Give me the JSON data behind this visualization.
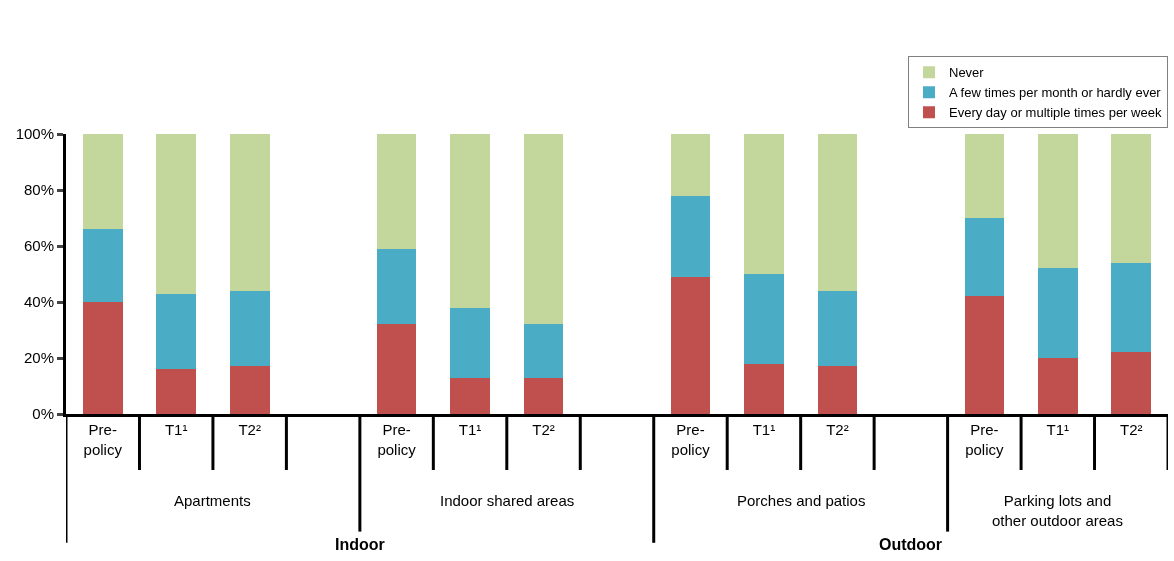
{
  "chart_data": {
    "type": "bar",
    "stacked": true,
    "categories": [
      "Pre-\npolicy",
      "T1¹",
      "T2²",
      null,
      "Pre-\npolicy",
      "T1¹",
      "T2²",
      null,
      "Pre-\npolicy",
      "T1¹",
      "T2²",
      null,
      "Pre-\npolicy",
      "T1¹",
      "T2²"
    ],
    "series": [
      {
        "name": "Every day or multiple times per week",
        "color": "#c0504d",
        "values": [
          40,
          16,
          17,
          null,
          32,
          13,
          13,
          null,
          49,
          18,
          17,
          null,
          42,
          20,
          22
        ]
      },
      {
        "name": "A few times per month or hardly ever",
        "color": "#4bacc6",
        "values": [
          26,
          27,
          27,
          null,
          27,
          25,
          19,
          null,
          29,
          32,
          27,
          null,
          28,
          32,
          32
        ]
      },
      {
        "name": "Never",
        "color": "#c3d69b",
        "values": [
          34,
          57,
          56,
          null,
          41,
          62,
          68,
          null,
          22,
          50,
          56,
          null,
          30,
          48,
          46
        ]
      }
    ],
    "ylim": [
      0,
      100
    ],
    "yticks": [
      {
        "value": 0,
        "label": "0%"
      },
      {
        "value": 20,
        "label": "20%"
      },
      {
        "value": 40,
        "label": "40%"
      },
      {
        "value": 60,
        "label": "60%"
      },
      {
        "value": 80,
        "label": "80%"
      },
      {
        "value": 100,
        "label": "100%"
      }
    ],
    "annotations": [
      "Apartments",
      "Indoor shared areas",
      "Porches and patios",
      "Parking lots and\nother outdoor areas",
      "Indoor",
      "Outdoor"
    ],
    "legend": "top right"
  }
}
